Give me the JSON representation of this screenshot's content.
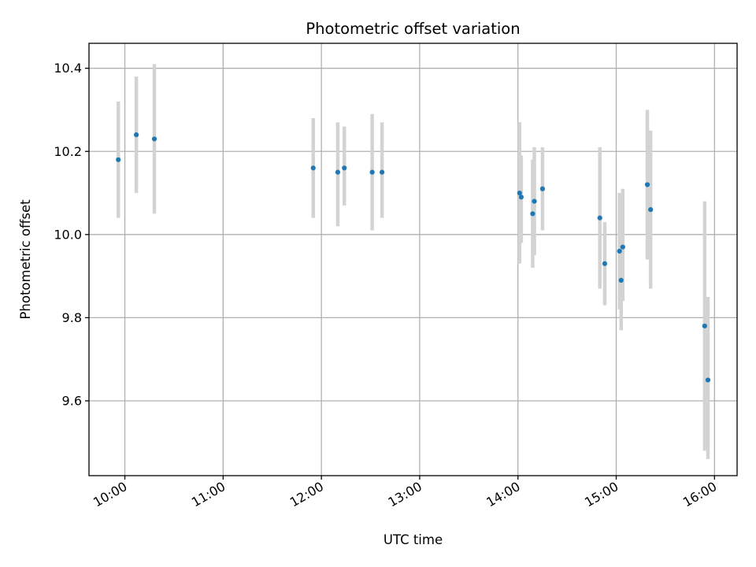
{
  "chart_data": {
    "type": "scatter",
    "title": "Photometric offset variation",
    "xlabel": "UTC time",
    "ylabel": "Photometric offset",
    "grid": true,
    "xlim_hours": [
      9.635,
      16.23
    ],
    "ylim": [
      9.42,
      10.46
    ],
    "x_ticks": [
      {
        "value": 10,
        "label": "10:00"
      },
      {
        "value": 11,
        "label": "11:00"
      },
      {
        "value": 12,
        "label": "12:00"
      },
      {
        "value": 13,
        "label": "13:00"
      },
      {
        "value": 14,
        "label": "14:00"
      },
      {
        "value": 15,
        "label": "15:00"
      },
      {
        "value": 16,
        "label": "16:00"
      }
    ],
    "y_ticks": [
      {
        "value": 9.6,
        "label": "9.6"
      },
      {
        "value": 9.8,
        "label": "9.8"
      },
      {
        "value": 10.0,
        "label": "10.0"
      },
      {
        "value": 10.2,
        "label": "10.2"
      },
      {
        "value": 10.4,
        "label": "10.4"
      }
    ],
    "colors": {
      "point": "#1f77b4",
      "errorbar": "#d3d3d3"
    },
    "points": [
      {
        "time": "09:56",
        "y": 10.18,
        "y_low": 10.04,
        "y_high": 10.32
      },
      {
        "time": "10:07",
        "y": 10.24,
        "y_low": 10.1,
        "y_high": 10.38
      },
      {
        "time": "10:18",
        "y": 10.23,
        "y_low": 10.05,
        "y_high": 10.41
      },
      {
        "time": "11:55",
        "y": 10.16,
        "y_low": 10.04,
        "y_high": 10.28
      },
      {
        "time": "12:10",
        "y": 10.15,
        "y_low": 10.02,
        "y_high": 10.27
      },
      {
        "time": "12:14",
        "y": 10.16,
        "y_low": 10.07,
        "y_high": 10.26
      },
      {
        "time": "12:31",
        "y": 10.15,
        "y_low": 10.01,
        "y_high": 10.29
      },
      {
        "time": "12:37",
        "y": 10.15,
        "y_low": 10.04,
        "y_high": 10.27
      },
      {
        "time": "14:01",
        "y": 10.1,
        "y_low": 9.93,
        "y_high": 10.27
      },
      {
        "time": "14:02",
        "y": 10.09,
        "y_low": 9.98,
        "y_high": 10.19
      },
      {
        "time": "14:09",
        "y": 10.05,
        "y_low": 9.92,
        "y_high": 10.18
      },
      {
        "time": "14:10",
        "y": 10.08,
        "y_low": 9.95,
        "y_high": 10.21
      },
      {
        "time": "14:15",
        "y": 10.11,
        "y_low": 10.01,
        "y_high": 10.21
      },
      {
        "time": "14:50",
        "y": 10.04,
        "y_low": 9.87,
        "y_high": 10.21
      },
      {
        "time": "14:53",
        "y": 9.93,
        "y_low": 9.83,
        "y_high": 10.03
      },
      {
        "time": "15:02",
        "y": 9.96,
        "y_low": 9.82,
        "y_high": 10.1
      },
      {
        "time": "15:03",
        "y": 9.89,
        "y_low": 9.77,
        "y_high": 10.01
      },
      {
        "time": "15:04",
        "y": 9.97,
        "y_low": 9.84,
        "y_high": 10.11
      },
      {
        "time": "15:19",
        "y": 10.12,
        "y_low": 9.94,
        "y_high": 10.3
      },
      {
        "time": "15:21",
        "y": 10.06,
        "y_low": 9.87,
        "y_high": 10.25
      },
      {
        "time": "15:54",
        "y": 9.78,
        "y_low": 9.48,
        "y_high": 10.08
      },
      {
        "time": "15:56",
        "y": 9.65,
        "y_low": 9.46,
        "y_high": 9.85
      }
    ]
  }
}
